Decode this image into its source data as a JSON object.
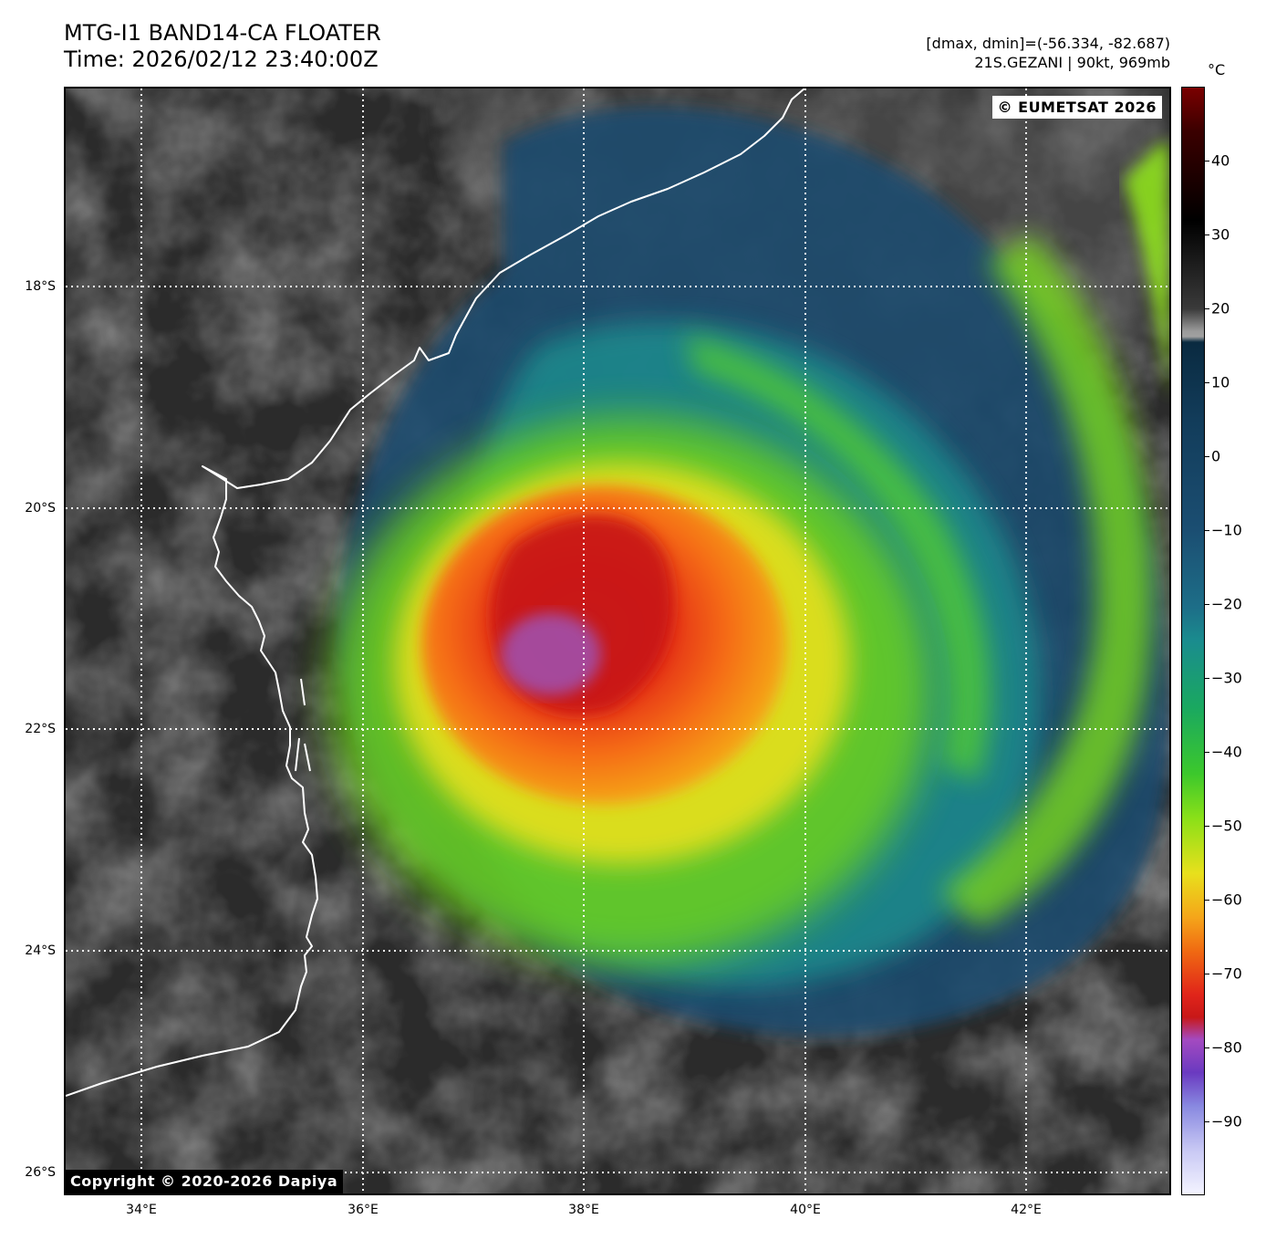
{
  "title": {
    "line1": "MTG-I1 BAND14-CA FLOATER",
    "line2": "Time: 2026/02/12 23:40:00Z"
  },
  "info": {
    "range": "[dmax, dmin]=(-56.334, -82.687)",
    "storm": "21S.GEZANI | 90kt, 969mb"
  },
  "watermarks": {
    "eumetsat": "© EUMETSAT 2026",
    "copyright": "Copyright © 2020-2026 Dapiya"
  },
  "latitude_labels": [
    "18°S",
    "20°S",
    "22°S",
    "24°S",
    "26°S"
  ],
  "longitude_labels": [
    "34°E",
    "36°E",
    "38°E",
    "40°E",
    "42°E"
  ],
  "colorbar": {
    "unit": "°C",
    "tick_labels": [
      "40",
      "30",
      "20",
      "10",
      "0",
      "−10",
      "−20",
      "−30",
      "−40",
      "−50",
      "−60",
      "−70",
      "−80",
      "−90"
    ],
    "tick_values": [
      40,
      30,
      20,
      10,
      0,
      -10,
      -20,
      -30,
      -40,
      -50,
      -60,
      -70,
      -80,
      -90
    ],
    "range": [
      -100,
      50
    ]
  },
  "storm": {
    "name": "21S.GEZANI",
    "center_lon": 38.0,
    "center_lat": -21.3
  },
  "colors": {
    "land_dark": "#2a2a2a",
    "coast": "#ffffff",
    "grid": "#ffffff",
    "blue": "#1d4d70",
    "teal": "#1d8a8a",
    "green": "#7ce01c",
    "yellow": "#f0e21c",
    "orange": "#f59a1a",
    "red": "#d8281c",
    "purple": "#9a5ac8"
  }
}
